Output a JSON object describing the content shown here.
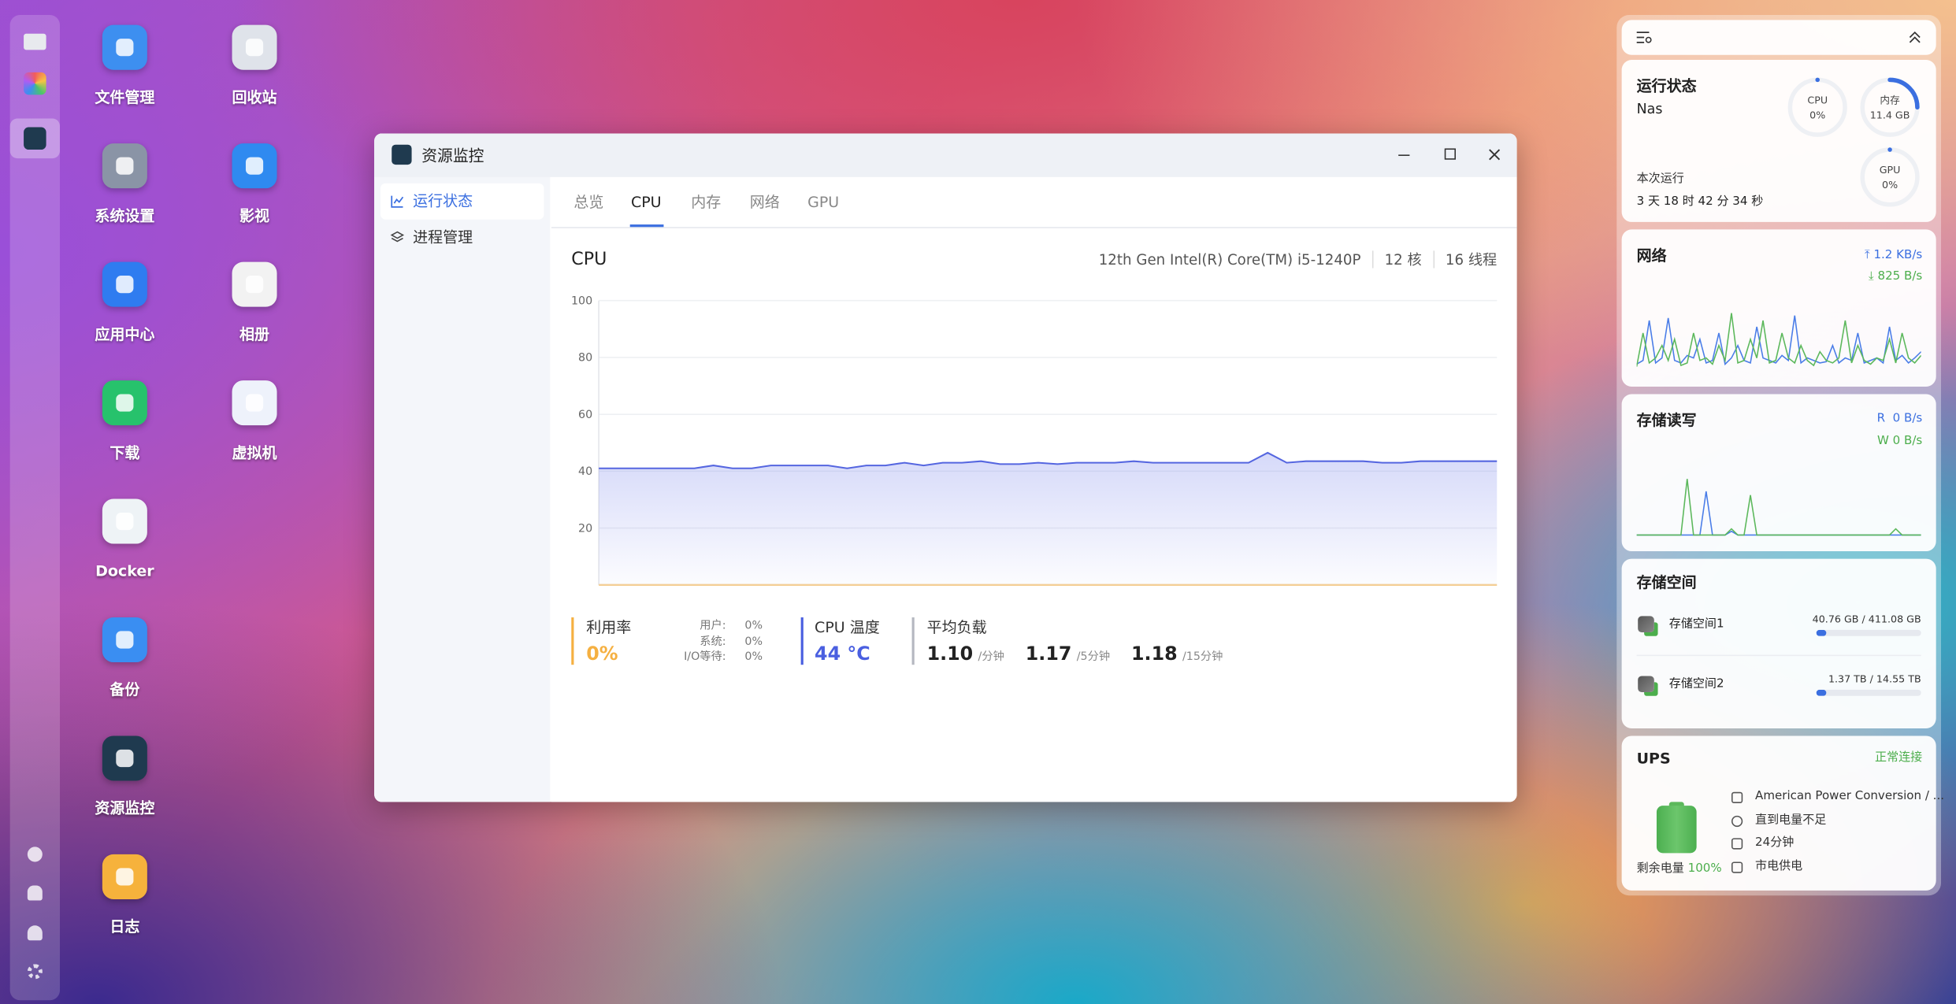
{
  "desktop": {
    "columns": [
      [
        {
          "label": "文件管理",
          "color": "#3d8ff0"
        },
        {
          "label": "系统设置",
          "color": "#8a94a6"
        },
        {
          "label": "应用中心",
          "color": "#2f7cf0"
        },
        {
          "label": "下载",
          "color": "#27c26c"
        },
        {
          "label": "Docker",
          "color": "#eef3f6"
        },
        {
          "label": "备份",
          "color": "#3a8ef2"
        },
        {
          "label": "资源监控",
          "color": "#1f3a4f"
        },
        {
          "label": "日志",
          "color": "#f6b23c"
        }
      ],
      [
        {
          "label": "回收站",
          "color": "#dfe3ea"
        },
        {
          "label": "影视",
          "color": "#2f8af0"
        },
        {
          "label": "相册",
          "color": "#f2f2f2"
        },
        {
          "label": "虚拟机",
          "color": "#eef2fb"
        }
      ]
    ]
  },
  "window": {
    "title": "资源监控",
    "sidebar": [
      "运行状态",
      "进程管理"
    ],
    "tabs": [
      "总览",
      "CPU",
      "内存",
      "网络",
      "GPU"
    ],
    "cpu": {
      "heading": "CPU",
      "model": "12th Gen Intel(R) Core(TM) i5-1240P",
      "cores": "12 核",
      "threads": "16 线程",
      "chart": {
        "type": "line",
        "color": "#5566e0",
        "ylim": [
          0,
          100
        ],
        "yticks": [
          20,
          40,
          60,
          80,
          100
        ],
        "values": [
          41,
          41,
          41,
          41,
          41,
          41,
          42,
          41,
          41,
          42,
          42,
          42,
          42,
          41,
          42,
          42,
          43,
          42,
          43,
          43,
          43.5,
          42.5,
          42.5,
          43,
          42.5,
          43,
          43,
          43,
          43.5,
          43,
          43,
          43,
          43,
          43,
          43,
          46.5,
          43,
          43.5,
          43.5,
          43.5,
          43.5,
          43,
          43,
          43.5,
          43.5,
          43.5,
          43.5,
          43.5
        ]
      },
      "utilization": {
        "label": "利用率",
        "value": "0%"
      },
      "breakdown": [
        {
          "label": "用户:",
          "value": "0%"
        },
        {
          "label": "系统:",
          "value": "0%"
        },
        {
          "label": "I/O等待:",
          "value": "0%"
        }
      ],
      "temperature": {
        "label": "CPU 温度",
        "value": "44 °C"
      },
      "load": {
        "label": "平均负载",
        "items": [
          {
            "value": "1.10",
            "unit": "/分钟"
          },
          {
            "value": "1.17",
            "unit": "/5分钟"
          },
          {
            "value": "1.18",
            "unit": "/15分钟"
          }
        ]
      }
    }
  },
  "widgets": {
    "status": {
      "title": "运行状态",
      "host": "Nas",
      "gauges": [
        {
          "label": "CPU",
          "value": "0%",
          "arc_percent": 0
        },
        {
          "label": "内存",
          "value": "11.4 GB",
          "arc_percent": 25
        },
        {
          "label": "GPU",
          "value": "0%",
          "arc_percent": 0
        }
      ],
      "uptime_label": "本次运行",
      "uptime": "3 天 18 时 42 分 34 秒"
    },
    "network": {
      "title": "网络",
      "up": "1.2 KB/s",
      "down": "825 B/s",
      "series": [
        {
          "color": "#4a7de8",
          "values": [
            5,
            8,
            40,
            6,
            10,
            42,
            8,
            6,
            12,
            10,
            25,
            6,
            8,
            30,
            5,
            10,
            20,
            8,
            6,
            35,
            10,
            8,
            6,
            12,
            8,
            44,
            6,
            10,
            8,
            6,
            7,
            20,
            6,
            10,
            8,
            30,
            6,
            8,
            10,
            6,
            35,
            8,
            12,
            6,
            10,
            15
          ]
        },
        {
          "color": "#5cb85c",
          "values": [
            3,
            30,
            6,
            10,
            20,
            8,
            25,
            4,
            6,
            30,
            8,
            10,
            5,
            20,
            8,
            46,
            6,
            8,
            25,
            10,
            40,
            6,
            8,
            30,
            10,
            6,
            20,
            8,
            4,
            15,
            8,
            6,
            10,
            40,
            6,
            20,
            8,
            5,
            10,
            8,
            25,
            6,
            30,
            10,
            6,
            12
          ]
        }
      ]
    },
    "disk_io": {
      "title": "存储读写",
      "read_label": "R",
      "read": "0 B/s",
      "write_label": "W",
      "write": "0 B/s",
      "series": [
        {
          "color": "#4a7de8",
          "values": [
            0,
            0,
            0,
            0,
            0,
            0,
            0,
            0,
            0,
            0,
            0,
            35,
            0,
            0,
            0,
            3,
            0,
            0,
            0,
            0,
            0,
            0,
            0,
            0,
            0,
            0,
            0,
            0,
            0,
            0,
            0,
            0,
            0,
            0,
            0,
            0,
            0,
            0,
            0,
            0,
            0,
            0,
            0,
            0,
            0,
            0
          ]
        },
        {
          "color": "#5cb85c",
          "values": [
            0,
            0,
            0,
            0,
            0,
            0,
            0,
            0,
            45,
            0,
            0,
            0,
            0,
            0,
            0,
            5,
            0,
            0,
            32,
            0,
            0,
            0,
            0,
            0,
            0,
            0,
            0,
            0,
            0,
            0,
            0,
            0,
            0,
            0,
            0,
            0,
            0,
            0,
            0,
            0,
            0,
            5,
            0,
            0,
            0,
            0
          ]
        }
      ]
    },
    "storage": {
      "title": "存储空间",
      "volumes": [
        {
          "name": "存储空间1",
          "usage": "40.76 GB / 411.08 GB",
          "fill_percent": 10
        },
        {
          "name": "存储空间2",
          "usage": "1.37 TB / 14.55 TB",
          "fill_percent": 9
        }
      ]
    },
    "ups": {
      "title": "UPS",
      "status": "正常连接",
      "battery_label": "剩余电量",
      "battery": "100%",
      "details": [
        "American Power Conversion / ...",
        "直到电量不足",
        "24分钟",
        "市电供电"
      ]
    }
  }
}
